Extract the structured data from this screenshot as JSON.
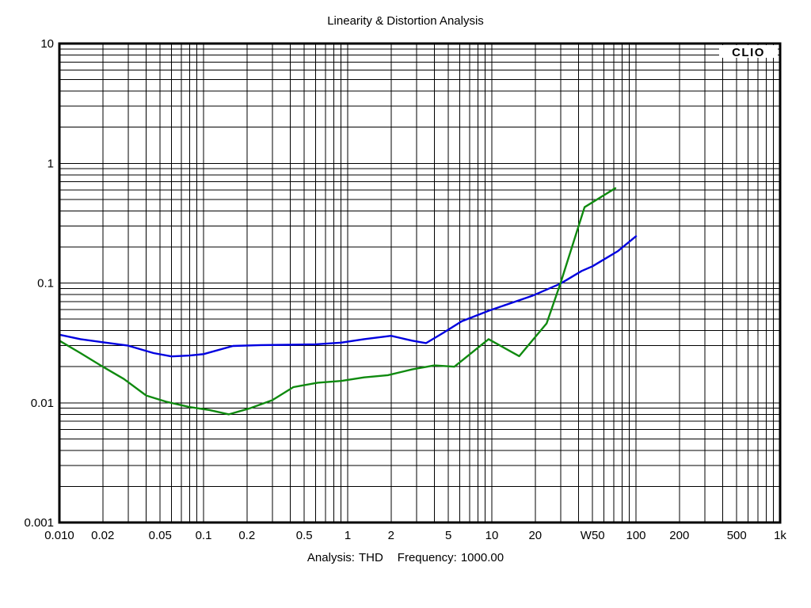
{
  "page": {
    "title": "Linearity & Distortion Analysis",
    "branding": "CLIO",
    "footer": {
      "analysis_label": "Analysis:",
      "analysis_value": "THD",
      "frequency_label": "Frequency:",
      "frequency_value": "1000.00"
    }
  },
  "colors": {
    "background": "#ffffff",
    "grid": "#000000",
    "border": "#000000",
    "blue_series": "#0000e0",
    "green_series": "#0f8a0f"
  },
  "chart_data": {
    "type": "line",
    "title": "Linearity & Distortion Analysis",
    "subtitle": "",
    "branding": "CLIO",
    "grid": "log minor gridlines on, both axes, black on white",
    "legend": "none",
    "x_axis": {
      "scale": "log",
      "min": 0.01,
      "max": 1000,
      "unit": "W",
      "tick_values": [
        0.01,
        0.02,
        0.05,
        0.1,
        0.2,
        0.5,
        1,
        2,
        5,
        10,
        20,
        50,
        100,
        200,
        500,
        1000
      ],
      "tick_labels": [
        "0.010",
        "0.02",
        "0.05",
        "0.1",
        "0.2",
        "0.5",
        "1",
        "2",
        "5",
        "10",
        "20",
        "W50",
        "100",
        "200",
        "500",
        "1k"
      ]
    },
    "y_axis": {
      "scale": "log",
      "min": 0.001,
      "max": 10,
      "unit": "%",
      "tick_values": [
        10,
        1,
        0.1,
        0.01,
        0.001
      ],
      "tick_labels": [
        "10",
        "1",
        "0.1",
        "0.01",
        "0.001"
      ]
    },
    "series": [
      {
        "name": "thd-blue-curve",
        "color": "#0000e0",
        "points": [
          [
            0.01,
            0.037
          ],
          [
            0.014,
            0.034
          ],
          [
            0.02,
            0.032
          ],
          [
            0.03,
            0.03
          ],
          [
            0.045,
            0.026
          ],
          [
            0.06,
            0.0244
          ],
          [
            0.08,
            0.0248
          ],
          [
            0.1,
            0.0255
          ],
          [
            0.16,
            0.0298
          ],
          [
            0.25,
            0.0303
          ],
          [
            0.4,
            0.0305
          ],
          [
            0.6,
            0.0308
          ],
          [
            0.9,
            0.0318
          ],
          [
            1.3,
            0.034
          ],
          [
            2.0,
            0.0362
          ],
          [
            2.8,
            0.033
          ],
          [
            3.5,
            0.0315
          ],
          [
            4.6,
            0.0383
          ],
          [
            6.2,
            0.048
          ],
          [
            9.6,
            0.059
          ],
          [
            19.0,
            0.078
          ],
          [
            30.0,
            0.099
          ],
          [
            42.0,
            0.126
          ],
          [
            50.0,
            0.138
          ],
          [
            75.0,
            0.185
          ],
          [
            100.0,
            0.246
          ]
        ]
      },
      {
        "name": "thd-green-curve",
        "color": "#0f8a0f",
        "points": [
          [
            0.01,
            0.033
          ],
          [
            0.014,
            0.026
          ],
          [
            0.02,
            0.02
          ],
          [
            0.028,
            0.0158
          ],
          [
            0.04,
            0.0115
          ],
          [
            0.055,
            0.0102
          ],
          [
            0.08,
            0.0092
          ],
          [
            0.11,
            0.0087
          ],
          [
            0.15,
            0.008
          ],
          [
            0.21,
            0.009
          ],
          [
            0.3,
            0.0105
          ],
          [
            0.42,
            0.0135
          ],
          [
            0.62,
            0.0147
          ],
          [
            0.9,
            0.0152
          ],
          [
            1.3,
            0.0163
          ],
          [
            1.9,
            0.017
          ],
          [
            2.8,
            0.019
          ],
          [
            4.0,
            0.0205
          ],
          [
            5.5,
            0.02
          ],
          [
            9.5,
            0.034
          ],
          [
            15.5,
            0.0245
          ],
          [
            24.0,
            0.046
          ],
          [
            30.0,
            0.1
          ],
          [
            44.0,
            0.43
          ],
          [
            72.0,
            0.62
          ]
        ]
      }
    ],
    "footer_text": "Analysis: THD   Frequency: 1000.00"
  }
}
